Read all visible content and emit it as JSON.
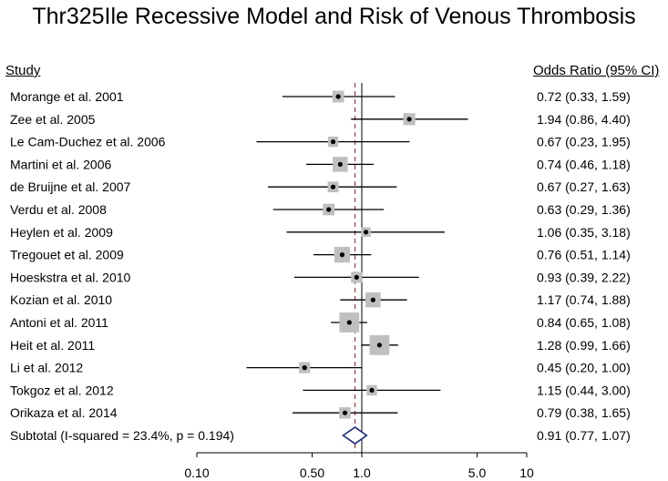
{
  "title": "Thr325Ile Recessive Model and Risk of Venous Thrombosis",
  "headers": {
    "study": "Study",
    "or_ci": "Odds Ratio (95% CI)"
  },
  "chart_data": {
    "type": "forest",
    "title": "Thr325Ile Recessive Model and Risk of Venous Thrombosis",
    "xscale": "log",
    "xlim": [
      0.05,
      14
    ],
    "null_line": 1.0,
    "pooled_line": 0.91,
    "xticks": [
      {
        "value": 0.1,
        "label": "0.10"
      },
      {
        "value": 0.5,
        "label": "0.50"
      },
      {
        "value": 1.0,
        "label": "1.0"
      },
      {
        "value": 5.0,
        "label": "5.0"
      },
      {
        "value": 10,
        "label": "10"
      }
    ],
    "studies": [
      {
        "name": "Morange et al. 2001",
        "or": 0.72,
        "lo": 0.33,
        "hi": 1.59,
        "label": "0.72 (0.33, 1.59)",
        "weight": 3.0
      },
      {
        "name": "Zee et al. 2005",
        "or": 1.94,
        "lo": 0.86,
        "hi": 4.4,
        "label": "1.94 (0.86, 4.40)",
        "weight": 3.3
      },
      {
        "name": "Le Cam-Duchez et al. 2006",
        "or": 0.67,
        "lo": 0.23,
        "hi": 1.95,
        "label": "0.67 (0.23, 1.95)",
        "weight": 2.0
      },
      {
        "name": "Martini et al. 2006",
        "or": 0.74,
        "lo": 0.46,
        "hi": 1.18,
        "label": "0.74 (0.46, 1.18)",
        "weight": 6.5
      },
      {
        "name": "de Bruijne et al. 2007",
        "or": 0.67,
        "lo": 0.27,
        "hi": 1.63,
        "label": "0.67 (0.27, 1.63)",
        "weight": 2.3
      },
      {
        "name": "Verdu et al. 2008",
        "or": 0.63,
        "lo": 0.29,
        "hi": 1.36,
        "label": "0.63 (0.29, 1.36)",
        "weight": 3.0
      },
      {
        "name": "Heylen et al. 2009",
        "or": 1.06,
        "lo": 0.35,
        "hi": 3.18,
        "label": "1.06 (0.35, 3.18)",
        "weight": 1.5
      },
      {
        "name": "Tregouet et al. 2009",
        "or": 0.76,
        "lo": 0.51,
        "hi": 1.14,
        "label": "0.76 (0.51, 1.14)",
        "weight": 7.5
      },
      {
        "name": "Hoeskstra et al. 2010",
        "or": 0.93,
        "lo": 0.39,
        "hi": 2.22,
        "label": "0.93 (0.39, 2.22)",
        "weight": 2.5
      },
      {
        "name": "Kozian et al. 2010",
        "or": 1.17,
        "lo": 0.74,
        "hi": 1.88,
        "label": "1.17 (0.74, 1.88)",
        "weight": 6.5
      },
      {
        "name": "Antoni et al. 2011",
        "or": 0.84,
        "lo": 0.65,
        "hi": 1.08,
        "label": "0.84 (0.65, 1.08)",
        "weight": 14.0
      },
      {
        "name": "Heit et al. 2011",
        "or": 1.28,
        "lo": 0.99,
        "hi": 1.66,
        "label": "1.28 (0.99, 1.66)",
        "weight": 14.0
      },
      {
        "name": "Li et al. 2012",
        "or": 0.45,
        "lo": 0.2,
        "hi": 1.0,
        "label": "0.45 (0.20, 1.00)",
        "weight": 2.5
      },
      {
        "name": "Tokgoz et al. 2012",
        "or": 1.15,
        "lo": 0.44,
        "hi": 3.0,
        "label": "1.15 (0.44, 3.00)",
        "weight": 2.0
      },
      {
        "name": "Orikaza et al. 2014",
        "or": 0.79,
        "lo": 0.38,
        "hi": 1.65,
        "label": "0.79 (0.38, 1.65)",
        "weight": 2.8
      }
    ],
    "subtotal": {
      "name": "Subtotal  (I-squared = 23.4%, p = 0.194)",
      "or": 0.91,
      "lo": 0.77,
      "hi": 1.07,
      "label": "0.91 (0.77, 1.07)"
    }
  }
}
